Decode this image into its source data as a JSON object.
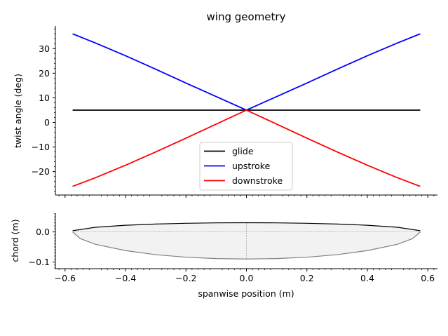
{
  "chart_data": [
    {
      "id": "twist",
      "type": "line",
      "title": "wing geometry",
      "xlabel": "",
      "ylabel": "twist angle (deg)",
      "xlim": [
        -0.632,
        0.632
      ],
      "ylim": [
        -29.5,
        39.2
      ],
      "xticks": [
        -0.6,
        -0.4,
        -0.2,
        0.0,
        0.2,
        0.4,
        0.6
      ],
      "xtick_labels_visible": false,
      "yticks": [
        -20,
        -10,
        0,
        10,
        20,
        30
      ],
      "ytick_labels": [
        "−20",
        "−10",
        "0",
        "10",
        "20",
        "30"
      ],
      "legend_position": "lower-center",
      "series": [
        {
          "name": "glide",
          "color": "#000000",
          "x": [
            -0.575,
            -0.45,
            -0.3,
            -0.15,
            0.0,
            0.15,
            0.3,
            0.45,
            0.575
          ],
          "y": [
            5.0,
            5.0,
            5.0,
            5.0,
            5.0,
            5.0,
            5.0,
            5.0,
            5.0
          ]
        },
        {
          "name": "upstroke",
          "color": "#0000ff",
          "x": [
            -0.575,
            -0.5,
            -0.4,
            -0.3,
            -0.2,
            -0.1,
            0.0,
            0.1,
            0.2,
            0.3,
            0.4,
            0.5,
            0.575
          ],
          "y": [
            36.0,
            32.3,
            27.1,
            21.6,
            16.0,
            10.5,
            5.0,
            10.5,
            16.0,
            21.6,
            27.1,
            32.3,
            36.0
          ]
        },
        {
          "name": "downstroke",
          "color": "#ff0000",
          "x": [
            -0.575,
            -0.5,
            -0.4,
            -0.3,
            -0.2,
            -0.1,
            0.0,
            0.1,
            0.2,
            0.3,
            0.4,
            0.5,
            0.575
          ],
          "y": [
            -26.0,
            -22.5,
            -17.4,
            -12.0,
            -6.4,
            -0.7,
            5.0,
            -0.7,
            -6.4,
            -12.0,
            -17.4,
            -22.5,
            -26.0
          ]
        }
      ]
    },
    {
      "id": "chord",
      "type": "area",
      "title": "",
      "xlabel": "spanwise position (m)",
      "ylabel": "chord (m)",
      "xlim": [
        -0.632,
        0.632
      ],
      "ylim": [
        -0.122,
        0.062
      ],
      "xticks": [
        -0.6,
        -0.4,
        -0.2,
        0.0,
        0.2,
        0.4,
        0.6
      ],
      "xtick_labels": [
        "−0.6",
        "−0.4",
        "−0.2",
        "0.0",
        "0.2",
        "0.4",
        "0.6"
      ],
      "yticks": [
        0.0,
        -0.1
      ],
      "ytick_labels": [
        "0.0",
        "−0.1"
      ],
      "leading_edge": {
        "color": "#000000",
        "x": [
          -0.575,
          -0.5,
          -0.4,
          -0.3,
          -0.2,
          -0.1,
          0.0,
          0.1,
          0.2,
          0.3,
          0.4,
          0.5,
          0.575
        ],
        "y": [
          0.004,
          0.0154,
          0.0222,
          0.0262,
          0.0287,
          0.0301,
          0.0305,
          0.0301,
          0.0287,
          0.0262,
          0.0222,
          0.0154,
          0.004
        ]
      },
      "trailing_edge": {
        "color": "#808080",
        "x": [
          -0.575,
          -0.55,
          -0.5,
          -0.4,
          -0.3,
          -0.2,
          -0.1,
          0.0,
          0.1,
          0.2,
          0.3,
          0.4,
          0.5,
          0.55,
          0.575
        ],
        "y": [
          0.0,
          -0.022,
          -0.041,
          -0.062,
          -0.0755,
          -0.084,
          -0.0885,
          -0.09,
          -0.0885,
          -0.084,
          -0.0755,
          -0.062,
          -0.041,
          -0.022,
          0.0
        ]
      },
      "fill_color": "#f2f2f2",
      "centerline_y": 0.0,
      "midline_x": 0.0,
      "guide_color": "#808080"
    }
  ]
}
